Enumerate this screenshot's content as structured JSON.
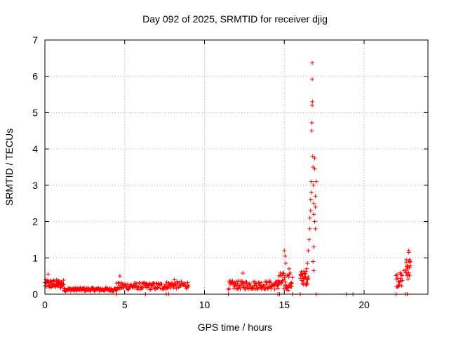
{
  "chart_data": {
    "type": "scatter",
    "title": "Day 092 of 2025, SRMTID for receiver djig",
    "xlabel": "GPS time / hours",
    "ylabel": "SRMTID / TECUs",
    "xlim": [
      0,
      24
    ],
    "ylim": [
      0,
      7
    ],
    "xticks": [
      0,
      5,
      10,
      15,
      20
    ],
    "yticks": [
      0,
      1,
      2,
      3,
      4,
      5,
      6,
      7
    ],
    "grid": true,
    "marker": "plus",
    "series_color": "#ff0000",
    "segments": [
      {
        "x_start": 0.0,
        "x_end": 1.2,
        "base": 0.28,
        "spread": 0.12,
        "n": 60
      },
      {
        "x_start": 1.2,
        "x_end": 4.5,
        "base": 0.13,
        "spread": 0.05,
        "n": 110
      },
      {
        "x_start": 4.5,
        "x_end": 7.6,
        "base": 0.22,
        "spread": 0.1,
        "n": 100
      },
      {
        "x_start": 7.6,
        "x_end": 9.0,
        "base": 0.25,
        "spread": 0.1,
        "n": 45
      },
      {
        "x_start": 11.5,
        "x_end": 14.6,
        "base": 0.25,
        "spread": 0.12,
        "n": 110
      },
      {
        "x_start": 14.6,
        "x_end": 15.5,
        "base": 0.35,
        "spread": 0.25,
        "n": 40
      },
      {
        "x_start": 16.0,
        "x_end": 16.5,
        "base": 0.45,
        "spread": 0.2,
        "n": 30
      },
      {
        "x_start": 22.0,
        "x_end": 22.4,
        "base": 0.4,
        "spread": 0.2,
        "n": 20
      },
      {
        "x_start": 22.6,
        "x_end": 22.9,
        "base": 0.7,
        "spread": 0.3,
        "n": 20
      }
    ],
    "notable_points": [
      {
        "x": 0.2,
        "y": 0.55
      },
      {
        "x": 4.7,
        "y": 0.5
      },
      {
        "x": 8.1,
        "y": 0.4
      },
      {
        "x": 12.4,
        "y": 0.58
      },
      {
        "x": 15.0,
        "y": 1.2
      },
      {
        "x": 15.05,
        "y": 1.05
      },
      {
        "x": 15.1,
        "y": 0.85
      },
      {
        "x": 15.3,
        "y": 0.7
      },
      {
        "x": 16.4,
        "y": 0.7
      },
      {
        "x": 16.45,
        "y": 0.85
      },
      {
        "x": 16.5,
        "y": 1.2
      },
      {
        "x": 16.55,
        "y": 1.5
      },
      {
        "x": 16.6,
        "y": 1.8
      },
      {
        "x": 16.6,
        "y": 2.1
      },
      {
        "x": 16.65,
        "y": 2.3
      },
      {
        "x": 16.65,
        "y": 2.6
      },
      {
        "x": 16.7,
        "y": 2.8
      },
      {
        "x": 16.7,
        "y": 3.1
      },
      {
        "x": 16.72,
        "y": 4.5
      },
      {
        "x": 16.73,
        "y": 4.72
      },
      {
        "x": 16.75,
        "y": 5.2
      },
      {
        "x": 16.76,
        "y": 5.3
      },
      {
        "x": 16.75,
        "y": 5.92
      },
      {
        "x": 16.75,
        "y": 6.37
      },
      {
        "x": 16.78,
        "y": 3.8
      },
      {
        "x": 16.8,
        "y": 3.5
      },
      {
        "x": 16.82,
        "y": 3.0
      },
      {
        "x": 16.85,
        "y": 2.5
      },
      {
        "x": 16.85,
        "y": 2.2
      },
      {
        "x": 16.9,
        "y": 3.75
      },
      {
        "x": 16.9,
        "y": 3.45
      },
      {
        "x": 16.9,
        "y": 2.0
      },
      {
        "x": 16.95,
        "y": 2.7
      },
      {
        "x": 16.95,
        "y": 2.4
      },
      {
        "x": 16.95,
        "y": 1.8
      },
      {
        "x": 17.0,
        "y": 3.1
      },
      {
        "x": 16.85,
        "y": 1.3
      },
      {
        "x": 16.8,
        "y": 0.9
      },
      {
        "x": 16.85,
        "y": 0.65
      },
      {
        "x": 22.5,
        "y": 0.65
      },
      {
        "x": 22.8,
        "y": 1.2
      },
      {
        "x": 22.8,
        "y": 1.15
      },
      {
        "x": 22.85,
        "y": 0.95
      }
    ],
    "zero_points_x": [
      4.5,
      6.3,
      7.6,
      7.75,
      11.5,
      14.6,
      14.7,
      15.5,
      16.0,
      17.0,
      18.9,
      19.3,
      22.0,
      22.6,
      22.7
    ]
  }
}
